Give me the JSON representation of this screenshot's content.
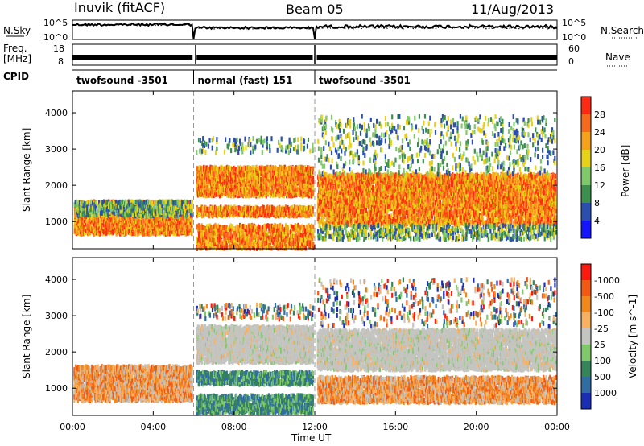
{
  "header": {
    "station": "Inuvik (fitACF)",
    "beam": "Beam 05",
    "date": "11/Aug/2013"
  },
  "panels": {
    "nsky": {
      "left_label": "N.Sky",
      "left_ticks": [
        "10^5",
        "10^0"
      ],
      "right_label": "N.Search",
      "right_ticks": [
        "10^5",
        "10^0"
      ]
    },
    "freq": {
      "left_label": "Freq.",
      "left_unit": "[MHz]",
      "left_ticks": [
        "18",
        "8"
      ],
      "right_label": "Nave",
      "right_ticks": [
        "60",
        "0"
      ]
    },
    "cpid": {
      "label": "CPID",
      "segments": [
        {
          "label": "twofsound -3501",
          "start_hour": 0,
          "end_hour": 6
        },
        {
          "label": "normal (fast) 151",
          "start_hour": 6,
          "end_hour": 12
        },
        {
          "label": "twofsound -3501",
          "start_hour": 12,
          "end_hour": 24
        }
      ]
    }
  },
  "chart_data": [
    {
      "type": "heatmap",
      "id": "power",
      "xlabel": "",
      "ylabel": "Slant Range [km]",
      "xlim": [
        0,
        24
      ],
      "ylim": [
        250,
        4600
      ],
      "yticks": [
        1000,
        2000,
        3000,
        4000
      ],
      "colorbar": {
        "label": "Power [dB]",
        "ticks": [
          "4",
          "8",
          "12",
          "16",
          "20",
          "24",
          "28"
        ],
        "colors": [
          "#1414ff",
          "#2a4fb0",
          "#3c8f4c",
          "#7fc96a",
          "#e8d218",
          "#f6a11a",
          "#f76a1c",
          "#ff2a12"
        ]
      },
      "mode_boundaries_hours": [
        6,
        12
      ]
    },
    {
      "type": "heatmap",
      "id": "velocity",
      "xlabel": "Time UT",
      "ylabel": "Slant Range [km]",
      "xlim": [
        0,
        24
      ],
      "ylim": [
        250,
        4600
      ],
      "yticks": [
        1000,
        2000,
        3000,
        4000
      ],
      "xticks": [
        "00:00",
        "04:00",
        "08:00",
        "12:00",
        "16:00",
        "20:00",
        "00:00"
      ],
      "colorbar": {
        "label": "Velocity [m s^-1]",
        "ticks": [
          "1000",
          "500",
          "100",
          "25",
          "-25",
          "-100",
          "-500",
          "-1000"
        ],
        "colors": [
          "#1a2fb5",
          "#2f6da3",
          "#36855a",
          "#7fc96a",
          "#c4c4c0",
          "#f6b060",
          "#f2871a",
          "#f25a14",
          "#ff1a10"
        ]
      },
      "mode_boundaries_hours": [
        6,
        12
      ]
    }
  ]
}
